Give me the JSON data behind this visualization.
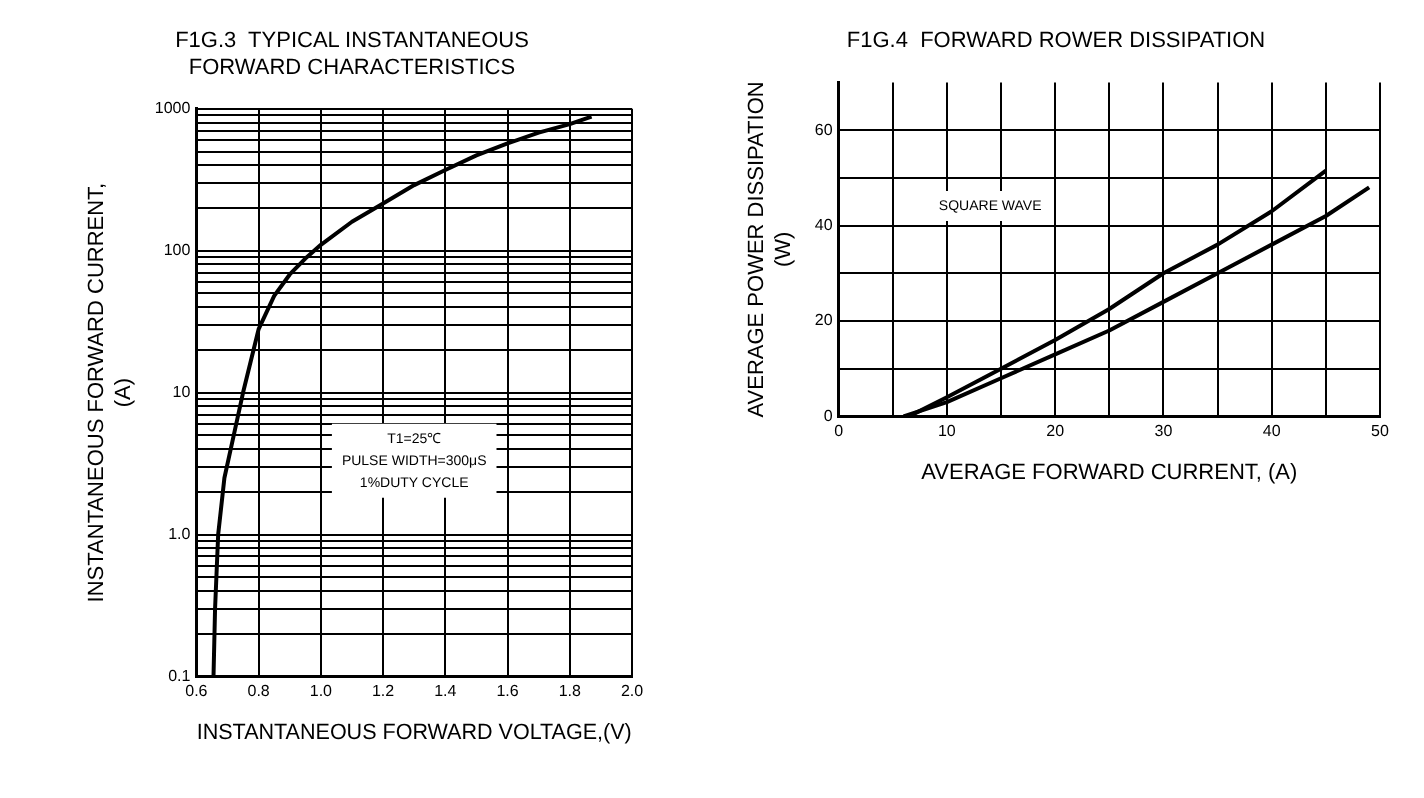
{
  "chart_data": [
    {
      "type": "line",
      "title": "F1G.3  TYPICAL INSTANTANEOUS\nFORWARD CHARACTERISTICS",
      "xlabel": "INSTANTANEOUS FORWARD VOLTAGE,(V)",
      "ylabel": "INSTANTANEOUS FORWARD CURRENT,\n(A)",
      "log": "y",
      "grid": true,
      "legend": false,
      "marker": "none",
      "line_style": "solid",
      "xlim": [
        0.6,
        2.0
      ],
      "xticks": [
        0.6,
        0.8,
        {
          "value": 1,
          "label": "1.0"
        },
        1.2,
        1.4,
        1.6,
        1.8,
        {
          "value": 2,
          "label": "2.0"
        }
      ],
      "ylim": [
        0.1,
        1000
      ],
      "yticks": [
        0.1,
        {
          "value": 0.2,
          "label": null
        },
        {
          "value": 0.3,
          "label": null
        },
        {
          "value": 0.4,
          "label": null
        },
        {
          "value": 0.5,
          "label": null
        },
        {
          "value": 0.6,
          "label": null
        },
        {
          "value": 0.7,
          "label": null
        },
        {
          "value": 0.8,
          "label": null
        },
        {
          "value": 0.9,
          "label": null
        },
        {
          "value": 1,
          "label": "1.0"
        },
        {
          "value": 2,
          "label": null
        },
        {
          "value": 3,
          "label": null
        },
        {
          "value": 4,
          "label": null
        },
        {
          "value": 5,
          "label": null
        },
        {
          "value": 6,
          "label": null
        },
        {
          "value": 7,
          "label": null
        },
        {
          "value": 8,
          "label": null
        },
        {
          "value": 9,
          "label": null
        },
        10,
        {
          "value": 20,
          "label": null
        },
        {
          "value": 30,
          "label": null
        },
        {
          "value": 40,
          "label": null
        },
        {
          "value": 50,
          "label": null
        },
        {
          "value": 60,
          "label": null
        },
        {
          "value": 70,
          "label": null
        },
        {
          "value": 80,
          "label": null
        },
        {
          "value": 90,
          "label": null
        },
        100,
        {
          "value": 200,
          "label": null
        },
        {
          "value": 300,
          "label": null
        },
        {
          "value": 400,
          "label": null
        },
        {
          "value": 500,
          "label": null
        },
        {
          "value": 600,
          "label": null
        },
        {
          "value": 700,
          "label": null
        },
        {
          "value": 800,
          "label": null
        },
        {
          "value": 900,
          "label": null
        },
        1000
      ],
      "annotations": [
        "T1=25℃\nPULSE WIDTH=300μS\n1%DUTY CYCLE"
      ],
      "series": [
        {
          "color": "#000000",
          "x": [
            0.655,
            0.66,
            0.67,
            0.69,
            0.72,
            0.75,
            0.8,
            0.85,
            0.9,
            0.95,
            1.0,
            1.1,
            1.2,
            1.3,
            1.4,
            1.5,
            1.6,
            1.7,
            1.8,
            1.87
          ],
          "values": [
            0.1,
            0.3,
            1,
            2.5,
            5,
            10,
            28,
            48,
            68,
            88,
            110,
            160,
            215,
            290,
            370,
            470,
            570,
            680,
            780,
            880
          ]
        }
      ]
    },
    {
      "type": "line",
      "title": "F1G.4  FORWARD ROWER DISSIPATION",
      "xlabel": "AVERAGE FORWARD CURRENT, (A)",
      "ylabel": "AVERAGE POWER DISSIPATION\n(W)",
      "grid": true,
      "legend": false,
      "marker": "none",
      "line_style": "solid",
      "xlim": [
        0,
        50
      ],
      "xticks": [
        0,
        {
          "value": 5,
          "label": null
        },
        10,
        {
          "value": 15,
          "label": null
        },
        20,
        {
          "value": 25,
          "label": null
        },
        30,
        {
          "value": 35,
          "label": null
        },
        40,
        {
          "value": 45,
          "label": null
        },
        50
      ],
      "ylim": [
        0,
        70
      ],
      "yticks": [
        0,
        {
          "value": 10,
          "label": null
        },
        20,
        {
          "value": 30,
          "label": null
        },
        40,
        {
          "value": 50,
          "label": null
        },
        60
      ],
      "annotations": [
        "SQUARE WAVE"
      ],
      "series": [
        {
          "color": "#000000",
          "x": [
            6.5,
            10,
            15,
            20,
            25,
            30,
            35,
            40,
            45
          ],
          "values": [
            0,
            4,
            10,
            16,
            22.5,
            30,
            36,
            43,
            51.5
          ]
        },
        {
          "color": "#000000",
          "x": [
            6,
            10,
            15,
            20,
            25,
            30,
            35,
            40,
            45,
            49
          ],
          "values": [
            0,
            3,
            8,
            13,
            18,
            24,
            30,
            36,
            42,
            48
          ]
        }
      ]
    }
  ]
}
